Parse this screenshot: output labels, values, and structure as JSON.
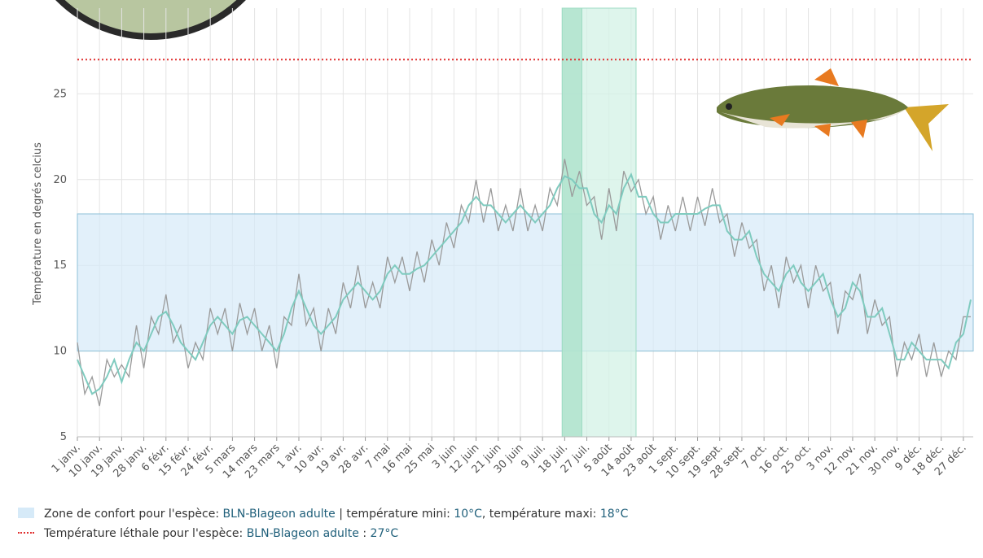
{
  "chart_data": {
    "type": "line",
    "y_label": "Température en degrés celcius",
    "xlim": [
      0,
      364
    ],
    "ylim": [
      5,
      30
    ],
    "yticks": [
      5,
      10,
      15,
      20,
      25
    ],
    "grid": true,
    "xticks": [
      {
        "value": 0,
        "label": "1 janv."
      },
      {
        "value": 9,
        "label": "10 janv."
      },
      {
        "value": 18,
        "label": "19 janv."
      },
      {
        "value": 27,
        "label": "28 janv."
      },
      {
        "value": 36,
        "label": "6 févr."
      },
      {
        "value": 45,
        "label": "15 févr."
      },
      {
        "value": 54,
        "label": "24 févr."
      },
      {
        "value": 63,
        "label": "5 mars"
      },
      {
        "value": 72,
        "label": "14 mars"
      },
      {
        "value": 81,
        "label": "23 mars"
      },
      {
        "value": 90,
        "label": "1 avr."
      },
      {
        "value": 99,
        "label": "10 avr."
      },
      {
        "value": 108,
        "label": "19 avr."
      },
      {
        "value": 117,
        "label": "28 avr."
      },
      {
        "value": 126,
        "label": "7 mai"
      },
      {
        "value": 135,
        "label": "16 mai"
      },
      {
        "value": 144,
        "label": "25 mai"
      },
      {
        "value": 153,
        "label": "3 juin"
      },
      {
        "value": 162,
        "label": "12 juin"
      },
      {
        "value": 171,
        "label": "21 juin"
      },
      {
        "value": 180,
        "label": "30 juin"
      },
      {
        "value": 189,
        "label": "9 juil."
      },
      {
        "value": 198,
        "label": "18 juil."
      },
      {
        "value": 207,
        "label": "27 juil."
      },
      {
        "value": 216,
        "label": "5 août"
      },
      {
        "value": 225,
        "label": "14 août"
      },
      {
        "value": 234,
        "label": "23 août"
      },
      {
        "value": 243,
        "label": "1 sept."
      },
      {
        "value": 252,
        "label": "10 sept."
      },
      {
        "value": 261,
        "label": "19 sept."
      },
      {
        "value": 270,
        "label": "28 sept."
      },
      {
        "value": 279,
        "label": "7 oct."
      },
      {
        "value": 288,
        "label": "16 oct."
      },
      {
        "value": 297,
        "label": "25 oct."
      },
      {
        "value": 306,
        "label": "3 nov."
      },
      {
        "value": 315,
        "label": "12 nov."
      },
      {
        "value": 324,
        "label": "21 nov."
      },
      {
        "value": 333,
        "label": "30 nov."
      },
      {
        "value": 342,
        "label": "9 déc."
      },
      {
        "value": 351,
        "label": "18 déc."
      },
      {
        "value": 360,
        "label": "27 déc."
      }
    ],
    "x": [
      0,
      3,
      6,
      9,
      12,
      15,
      18,
      21,
      24,
      27,
      30,
      33,
      36,
      39,
      42,
      45,
      48,
      51,
      54,
      57,
      60,
      63,
      66,
      69,
      72,
      75,
      78,
      81,
      84,
      87,
      90,
      93,
      96,
      99,
      102,
      105,
      108,
      111,
      114,
      117,
      120,
      123,
      126,
      129,
      132,
      135,
      138,
      141,
      144,
      147,
      150,
      153,
      156,
      159,
      162,
      165,
      168,
      171,
      174,
      177,
      180,
      183,
      186,
      189,
      192,
      195,
      198,
      201,
      204,
      207,
      210,
      213,
      216,
      219,
      222,
      225,
      228,
      231,
      234,
      237,
      240,
      243,
      246,
      249,
      252,
      255,
      258,
      261,
      264,
      267,
      270,
      273,
      276,
      279,
      282,
      285,
      288,
      291,
      294,
      297,
      300,
      303,
      306,
      309,
      312,
      315,
      318,
      321,
      324,
      327,
      330,
      333,
      336,
      339,
      342,
      345,
      348,
      351,
      354,
      357,
      360,
      363
    ],
    "series": [
      {
        "color": "#9a9a9a",
        "values": [
          10.5,
          7.5,
          8.5,
          6.8,
          9.5,
          8.5,
          9.2,
          8.5,
          11.5,
          9,
          12,
          11,
          13.3,
          10.5,
          11.5,
          9,
          10.5,
          9.5,
          12.5,
          11,
          12.5,
          10,
          12.8,
          11,
          12.5,
          10,
          11.5,
          9,
          12,
          11.5,
          14.5,
          11.5,
          12.5,
          10,
          12.5,
          11,
          14,
          12.5,
          15,
          12.5,
          14,
          12.5,
          15.5,
          14,
          15.5,
          13.5,
          15.8,
          14,
          16.5,
          15,
          17.5,
          16,
          18.5,
          17.5,
          20,
          17.5,
          19.5,
          17,
          18.5,
          17,
          19.5,
          17,
          18.5,
          17,
          19.5,
          18.5,
          21.2,
          19,
          20.5,
          18.5,
          19,
          16.5,
          19.5,
          17,
          20.5,
          19.3,
          20,
          18,
          19,
          16.5,
          18.5,
          17,
          19,
          17,
          19,
          17.3,
          19.5,
          17.5,
          18,
          15.5,
          17.5,
          16,
          16.5,
          13.5,
          15,
          12.5,
          15.5,
          14,
          15,
          12.5,
          15,
          13.5,
          14,
          11,
          13.5,
          13,
          14.5,
          11,
          13,
          11.5,
          12,
          8.5,
          10.5,
          9.5,
          11,
          8.5,
          10.5,
          8.5,
          10,
          9.5,
          12,
          12
        ]
      },
      {
        "color": "#7fcbbf",
        "values": [
          9.5,
          8.5,
          7.5,
          7.8,
          8.5,
          9.5,
          8.2,
          9.5,
          10.5,
          10,
          11,
          12,
          12.3,
          11.5,
          10.5,
          10,
          9.5,
          10.5,
          11.5,
          12,
          11.5,
          11,
          11.8,
          12,
          11.5,
          11,
          10.5,
          10,
          11,
          12.5,
          13.5,
          12.5,
          11.5,
          11,
          11.5,
          12,
          13,
          13.5,
          14,
          13.5,
          13,
          13.5,
          14.5,
          15,
          14.5,
          14.5,
          14.8,
          15,
          15.5,
          16,
          16.5,
          17,
          17.5,
          18.5,
          19,
          18.5,
          18.5,
          18,
          17.5,
          18,
          18.5,
          18,
          17.5,
          18,
          18.5,
          19.5,
          20.2,
          20,
          19.5,
          19.5,
          18,
          17.5,
          18.5,
          18,
          19.5,
          20.3,
          19,
          19,
          18,
          17.5,
          17.5,
          18,
          18,
          18,
          18,
          18.3,
          18.5,
          18.5,
          17,
          16.5,
          16.5,
          17,
          15.5,
          14.5,
          14,
          13.5,
          14.5,
          15,
          14,
          13.5,
          14,
          14.5,
          13,
          12,
          12.5,
          14,
          13.5,
          12,
          12,
          12.5,
          11,
          9.5,
          9.5,
          10.5,
          10,
          9.5,
          9.5,
          9.5,
          9,
          10.5,
          11,
          13
        ]
      }
    ],
    "highlights": [
      {
        "x": [
          197,
          227
        ],
        "color": "#d3f1e6"
      },
      {
        "x": [
          197,
          205
        ],
        "color": "#a9e0c9"
      }
    ],
    "comfort_zone": {
      "ymin": 10,
      "ymax": 18,
      "color": "#d6eaf8",
      "legend": [
        "Zone de confort pour l'espèce:",
        "BLN-Blageon adulte",
        "| température mini:",
        "10°C",
        ", température maxi:",
        "18°C"
      ]
    },
    "lethal": {
      "value": 27,
      "color": "#e03030",
      "legend": [
        "Température léthale pour l'espèce:",
        "BLN-Blageon adulte",
        ":",
        "27°C"
      ]
    }
  }
}
